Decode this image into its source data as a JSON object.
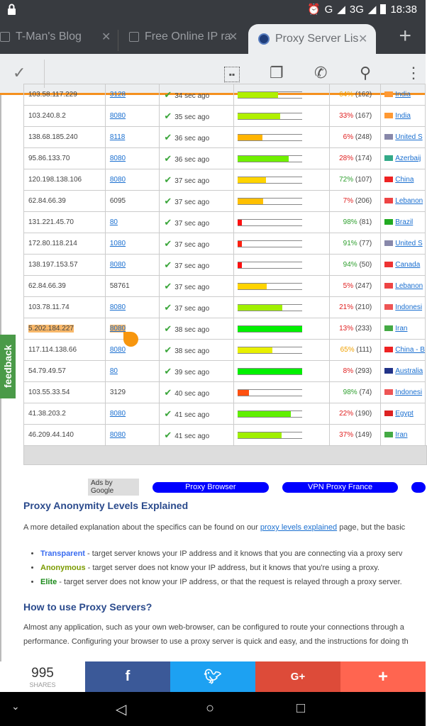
{
  "status": {
    "time": "18:38",
    "network1": "G",
    "network2": "3G"
  },
  "tabs": [
    {
      "title": "T-Man's Blog"
    },
    {
      "title": "Free Online IP ra"
    },
    {
      "title": "Proxy Server Lis",
      "active": true
    }
  ],
  "toolbar": {
    "icons": [
      "check-icon",
      "qr-icon",
      "copy-icon",
      "phone-icon",
      "search-icon",
      "more-icon"
    ]
  },
  "proxy_table": {
    "rows": [
      {
        "ip": "103.58.117.229",
        "port": "3128",
        "port_link": true,
        "checked": "34 sec ago",
        "speed": 0.63,
        "speed_color": "#b0f000",
        "uptime": "64%",
        "uptime_count": "(162)",
        "uptime_color": "#f0a000",
        "country": "India",
        "flag": "#f93"
      },
      {
        "ip": "103.240.8.2",
        "port": "8080",
        "port_link": true,
        "checked": "35 sec ago",
        "speed": 0.66,
        "speed_color": "#b0f000",
        "uptime": "33%",
        "uptime_count": "(167)",
        "uptime_color": "#e02020",
        "country": "India",
        "flag": "#f93"
      },
      {
        "ip": "138.68.185.240",
        "port": "8118",
        "port_link": true,
        "checked": "36 sec ago",
        "speed": 0.38,
        "speed_color": "#ffb400",
        "uptime": "6%",
        "uptime_count": "(248)",
        "uptime_color": "#e02020",
        "country": "United S",
        "flag": "#88a"
      },
      {
        "ip": "95.86.133.70",
        "port": "8080",
        "port_link": true,
        "checked": "36 sec ago",
        "speed": 0.79,
        "speed_color": "#70f000",
        "uptime": "28%",
        "uptime_count": "(174)",
        "uptime_color": "#e02020",
        "country": "Azerbaij",
        "flag": "#3a8"
      },
      {
        "ip": "120.198.138.106",
        "port": "8080",
        "port_link": true,
        "checked": "37 sec ago",
        "speed": 0.44,
        "speed_color": "#ffd400",
        "uptime": "72%",
        "uptime_count": "(107)",
        "uptime_color": "#30a030",
        "country": "China",
        "flag": "#e22"
      },
      {
        "ip": "62.84.66.39",
        "port": "6095",
        "port_link": false,
        "checked": "37 sec ago",
        "speed": 0.39,
        "speed_color": "#ffc000",
        "uptime": "7%",
        "uptime_count": "(206)",
        "uptime_color": "#e02020",
        "country": "Lebanon",
        "flag": "#e44"
      },
      {
        "ip": "131.221.45.70",
        "port": "80",
        "port_link": true,
        "checked": "37 sec ago",
        "speed": 0.06,
        "speed_color": "#ff1010",
        "uptime": "98%",
        "uptime_count": "(81)",
        "uptime_color": "#30a030",
        "country": "Brazil",
        "flag": "#2a2"
      },
      {
        "ip": "172.80.118.214",
        "port": "1080",
        "port_link": true,
        "checked": "37 sec ago",
        "speed": 0.06,
        "speed_color": "#ff2010",
        "uptime": "91%",
        "uptime_count": "(77)",
        "uptime_color": "#30a030",
        "country": "United S",
        "flag": "#88a"
      },
      {
        "ip": "138.197.153.57",
        "port": "8080",
        "port_link": true,
        "checked": "37 sec ago",
        "speed": 0.06,
        "speed_color": "#ff1010",
        "uptime": "94%",
        "uptime_count": "(50)",
        "uptime_color": "#30a030",
        "country": "Canada",
        "flag": "#e33"
      },
      {
        "ip": "62.84.66.39",
        "port": "58761",
        "port_link": false,
        "checked": "37 sec ago",
        "speed": 0.45,
        "speed_color": "#ffd400",
        "uptime": "5%",
        "uptime_count": "(247)",
        "uptime_color": "#e02020",
        "country": "Lebanon",
        "flag": "#e44"
      },
      {
        "ip": "103.78.11.74",
        "port": "8080",
        "port_link": true,
        "checked": "37 sec ago",
        "speed": 0.69,
        "speed_color": "#a0f000",
        "uptime": "21%",
        "uptime_count": "(210)",
        "uptime_color": "#e02020",
        "country": "Indonesi",
        "flag": "#e55"
      },
      {
        "ip": "5.202.184.227",
        "port": "8080",
        "port_link": true,
        "highlight": true,
        "checked": "38 sec ago",
        "speed": 1.0,
        "speed_color": "#00f000",
        "uptime": "13%",
        "uptime_count": "(233)",
        "uptime_color": "#e02020",
        "country": "Iran",
        "flag": "#4a4"
      },
      {
        "ip": "117.114.138.66",
        "port": "8080",
        "port_link": true,
        "checked": "38 sec ago",
        "speed": 0.54,
        "speed_color": "#e8f000",
        "uptime": "65%",
        "uptime_count": "(111)",
        "uptime_color": "#f0a000",
        "country": "China - B",
        "flag": "#e22"
      },
      {
        "ip": "54.79.49.57",
        "port": "80",
        "port_link": true,
        "checked": "39 sec ago",
        "speed": 1.0,
        "speed_color": "#00f000",
        "uptime": "8%",
        "uptime_count": "(293)",
        "uptime_color": "#e02020",
        "country": "Australia",
        "flag": "#238"
      },
      {
        "ip": "103.55.33.54",
        "port": "3129",
        "port_link": false,
        "checked": "40 sec ago",
        "speed": 0.17,
        "speed_color": "#ff5010",
        "uptime": "98%",
        "uptime_count": "(74)",
        "uptime_color": "#30a030",
        "country": "Indonesi",
        "flag": "#e55"
      },
      {
        "ip": "41.38.203.2",
        "port": "8080",
        "port_link": true,
        "checked": "41 sec ago",
        "speed": 0.82,
        "speed_color": "#60f000",
        "uptime": "22%",
        "uptime_count": "(190)",
        "uptime_color": "#e02020",
        "country": "Egypt",
        "flag": "#d22"
      },
      {
        "ip": "46.209.44.140",
        "port": "8080",
        "port_link": true,
        "checked": "41 sec ago",
        "speed": 0.68,
        "speed_color": "#a0f000",
        "uptime": "37%",
        "uptime_count": "(149)",
        "uptime_color": "#e02020",
        "country": "Iran",
        "flag": "#4a4"
      }
    ]
  },
  "ads": {
    "label": "Ads by Google",
    "links": [
      "Proxy Browser",
      "VPN Proxy France"
    ]
  },
  "section1": {
    "title": "Proxy Anonymity Levels Explained",
    "intro_before": "A more detailed explanation about the specifics can be found on our ",
    "intro_link": "proxy levels explained",
    "intro_after": " page, but the basic",
    "items": [
      {
        "term": "Transparent",
        "color": "#3a6cf0",
        "text": " - target server knows your IP address and it knows that you are connecting via a proxy serv"
      },
      {
        "term": "Anonymous",
        "color": "#7a9a00",
        "text": " - target server does not know your IP address, but it knows that you're using a proxy."
      },
      {
        "term": "Elite",
        "color": "#1a8a1a",
        "text": " - target server does not know your IP address, or that the request is relayed through a proxy server."
      }
    ]
  },
  "section2": {
    "title": "How to use Proxy Servers?",
    "line1": "Almost any application, such as your own web-browser, can be configured to route your connections through a",
    "line2": "performance. Configuring your browser to use a proxy server is quick and easy, and the instructions for doing th"
  },
  "feedback": "feedback",
  "share": {
    "count": "995",
    "label": "SHARES",
    "colors": {
      "facebook": "#3b5998",
      "twitter": "#1da1f2",
      "google": "#dd4b39",
      "more": "#ff6550"
    }
  }
}
